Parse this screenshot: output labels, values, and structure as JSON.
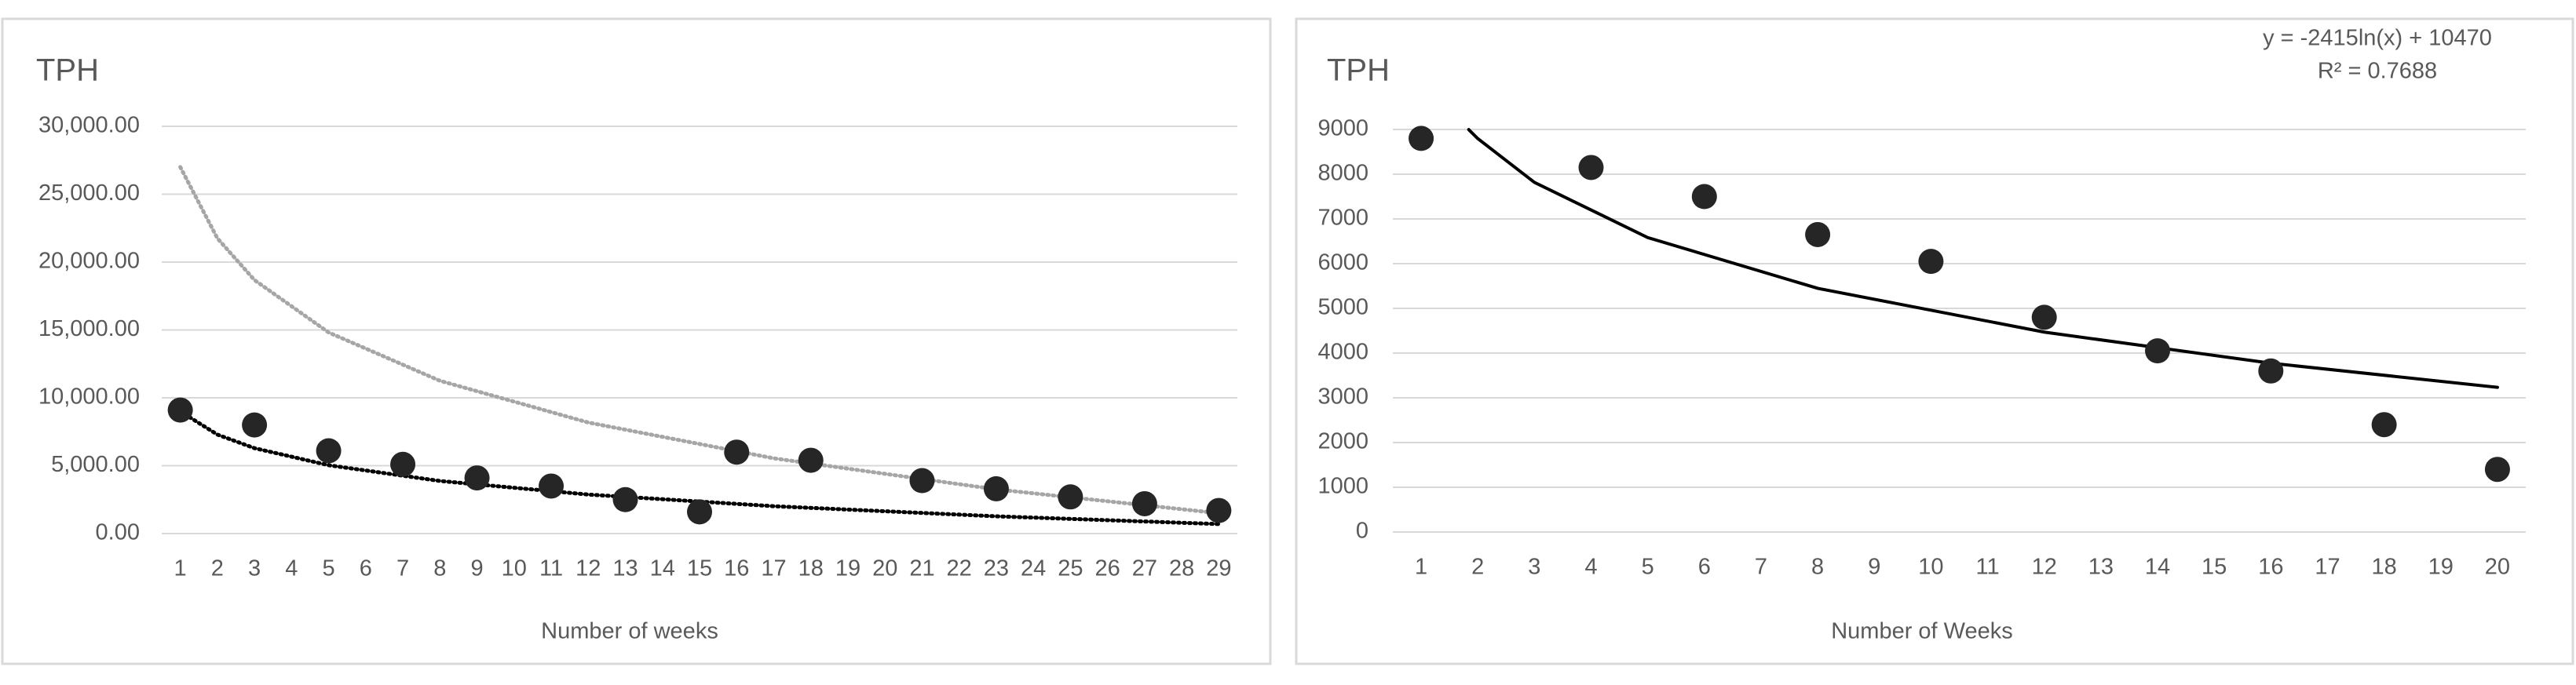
{
  "chart_data": [
    {
      "type": "scatter",
      "title": "TPH",
      "x_label": "Number of weeks",
      "xlim": [
        0.5,
        29.5
      ],
      "xticks": [
        1,
        2,
        3,
        4,
        5,
        6,
        7,
        8,
        9,
        10,
        11,
        12,
        13,
        14,
        15,
        16,
        17,
        18,
        19,
        20,
        21,
        22,
        23,
        24,
        25,
        26,
        27,
        28,
        29
      ],
      "ylim": [
        0,
        30000
      ],
      "yticks": [
        {
          "value": 0,
          "label": "0.00"
        },
        {
          "value": 5000,
          "label": "5,000.00"
        },
        {
          "value": 10000,
          "label": "10,000.00"
        },
        {
          "value": 15000,
          "label": "15,000.00"
        },
        {
          "value": 20000,
          "label": "20,000.00"
        },
        {
          "value": 25000,
          "label": "25,000.00"
        },
        {
          "value": 30000,
          "label": "30,000.00"
        }
      ],
      "grid": true,
      "points": {
        "color": "#262626",
        "x": [
          1,
          3,
          5,
          7,
          9,
          11,
          13,
          15,
          16,
          18,
          21,
          23,
          25,
          27,
          29
        ],
        "values": [
          9100,
          8000,
          6100,
          5100,
          4100,
          3500,
          2500,
          1600,
          6000,
          5400,
          3900,
          3300,
          2700,
          2200,
          1700
        ]
      },
      "trendlines": [
        {
          "color": "#000000",
          "style": "dotted",
          "x": [
            1,
            2,
            3,
            5,
            8,
            12,
            17,
            23,
            29
          ],
          "values": [
            9000,
            7291,
            6291,
            5034,
            3875,
            2874,
            2016,
            1272,
            700
          ]
        },
        {
          "color": "#a6a6a6",
          "style": "dotted",
          "x": [
            1,
            2,
            3,
            5,
            8,
            12,
            17,
            23,
            29
          ],
          "values": [
            27000,
            21752,
            18677,
            14815,
            11256,
            8181,
            5545,
            3258,
            1500
          ]
        }
      ]
    },
    {
      "type": "scatter",
      "title": "TPH",
      "x_label": "Number of Weeks",
      "equation": "y = -2415ln(x) + 10470",
      "r_squared": "R² = 0.7688",
      "xlim": [
        0.5,
        20.5
      ],
      "xticks": [
        1,
        2,
        3,
        4,
        5,
        6,
        7,
        8,
        9,
        10,
        11,
        12,
        13,
        14,
        15,
        16,
        17,
        18,
        19,
        20
      ],
      "ylim": [
        0,
        9000
      ],
      "yticks": [
        0,
        1000,
        2000,
        3000,
        4000,
        5000,
        6000,
        7000,
        8000,
        9000
      ],
      "grid": true,
      "points": {
        "color": "#262626",
        "x": [
          1,
          4,
          6,
          8,
          10,
          12,
          14,
          16,
          18,
          20
        ],
        "values": [
          8800,
          8150,
          7500,
          6650,
          6050,
          4800,
          4050,
          3600,
          2400,
          1400
        ]
      },
      "trendlines": [
        {
          "color": "#000000",
          "style": "solid",
          "x": [
            1.84,
            2,
            3,
            5,
            8,
            12,
            16,
            20
          ],
          "values": [
            8997,
            8796,
            7817,
            6583,
            5448,
            4469,
            3774,
            3235
          ]
        }
      ]
    }
  ]
}
